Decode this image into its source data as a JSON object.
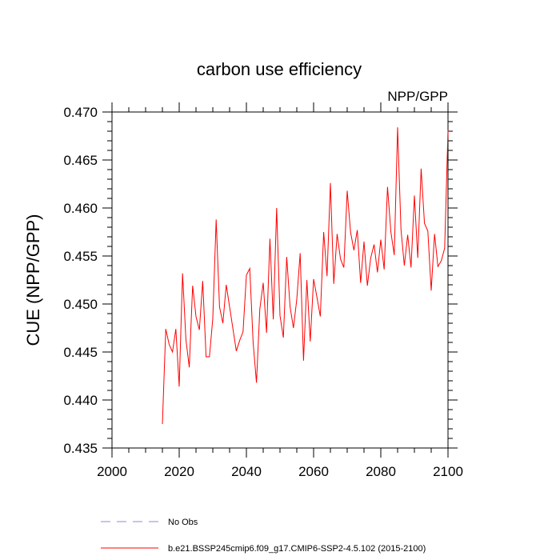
{
  "chart_data": {
    "type": "line",
    "title": "carbon use efficiency",
    "subtitle": "NPP/GPP",
    "xlabel": "",
    "ylabel": "CUE  (NPP/GPP)",
    "xlim": [
      2000,
      2100
    ],
    "ylim": [
      0.435,
      0.47
    ],
    "x_ticks": [
      2000,
      2020,
      2040,
      2060,
      2080,
      2100
    ],
    "x_tick_labels": [
      "2000",
      "2020",
      "2040",
      "2060",
      "2080",
      "2100"
    ],
    "y_ticks": [
      0.435,
      0.44,
      0.445,
      0.45,
      0.455,
      0.46,
      0.465,
      0.47
    ],
    "y_tick_labels": [
      "0.435",
      "0.440",
      "0.445",
      "0.450",
      "0.455",
      "0.460",
      "0.465",
      "0.470"
    ],
    "grid": false,
    "legend_position": "bottom",
    "series": [
      {
        "name": "b.e21.BSSP245cmip6.f09_g17.CMIP6-SSP2-4.5.102 (2015-2100)",
        "color": "#ff0000",
        "style": "solid",
        "x": [
          2015,
          2016,
          2017,
          2018,
          2019,
          2020,
          2021,
          2022,
          2023,
          2024,
          2025,
          2026,
          2027,
          2028,
          2029,
          2030,
          2031,
          2032,
          2033,
          2034,
          2035,
          2036,
          2037,
          2038,
          2039,
          2040,
          2041,
          2042,
          2043,
          2044,
          2045,
          2046,
          2047,
          2048,
          2049,
          2050,
          2051,
          2052,
          2053,
          2054,
          2055,
          2056,
          2057,
          2058,
          2059,
          2060,
          2061,
          2062,
          2063,
          2064,
          2065,
          2066,
          2067,
          2068,
          2069,
          2070,
          2071,
          2072,
          2073,
          2074,
          2075,
          2076,
          2077,
          2078,
          2079,
          2080,
          2081,
          2082,
          2083,
          2084,
          2085,
          2086,
          2087,
          2088,
          2089,
          2090,
          2091,
          2092,
          2093,
          2094,
          2095,
          2096,
          2097,
          2098,
          2099,
          2100
        ],
        "values": [
          0.4375,
          0.4474,
          0.4458,
          0.445,
          0.4474,
          0.4414,
          0.4532,
          0.4463,
          0.4434,
          0.4519,
          0.4487,
          0.4473,
          0.4524,
          0.4445,
          0.4445,
          0.4485,
          0.4588,
          0.4497,
          0.448,
          0.452,
          0.4497,
          0.4474,
          0.4451,
          0.4462,
          0.4471,
          0.453,
          0.4537,
          0.446,
          0.4418,
          0.4495,
          0.4522,
          0.447,
          0.4568,
          0.4484,
          0.46,
          0.4488,
          0.4465,
          0.4549,
          0.4497,
          0.4475,
          0.4505,
          0.4553,
          0.4441,
          0.4525,
          0.4461,
          0.4526,
          0.4507,
          0.4487,
          0.4575,
          0.4529,
          0.4626,
          0.4521,
          0.4573,
          0.4547,
          0.4538,
          0.4618,
          0.4575,
          0.4556,
          0.4577,
          0.4522,
          0.4565,
          0.4519,
          0.4548,
          0.4562,
          0.4533,
          0.4567,
          0.4536,
          0.4622,
          0.4575,
          0.4551,
          0.4684,
          0.4578,
          0.454,
          0.4572,
          0.4538,
          0.4613,
          0.4548,
          0.4641,
          0.4584,
          0.4576,
          0.4514,
          0.4573,
          0.4539,
          0.4545,
          0.4558,
          0.4681
        ]
      },
      {
        "name": "No Obs",
        "color": "#8a8ae6",
        "style": "dashed",
        "x": [],
        "values": []
      }
    ]
  }
}
